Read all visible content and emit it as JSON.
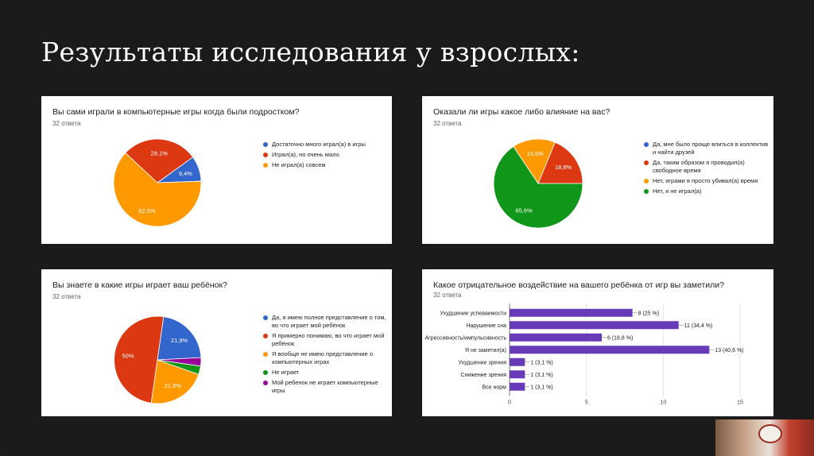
{
  "slide": {
    "title": "Результаты исследования у взрослых:"
  },
  "chart_data": [
    {
      "type": "pie",
      "title": "Вы сами играли в компьютерные игры когда были подростком?",
      "subtitle": "32 ответа",
      "categories": [
        "Достаточно много играл(а) в игры",
        "Играл(а), но очень мало",
        "Не играл(а) совсем"
      ],
      "values": [
        9.4,
        28.1,
        62.5
      ],
      "value_labels": [
        "9,4%",
        "28,1%",
        "62,5%"
      ],
      "colors": [
        "#3366cc",
        "#dc3912",
        "#ff9900"
      ],
      "legend_position": "right"
    },
    {
      "type": "pie",
      "title": "Оказали ли игры какое либо влияние на вас?",
      "subtitle": "32 ответа",
      "categories": [
        "Да, мне было проще влиться в коллектив и найти друзей",
        "Да, таким образом я проводил(а) свободное время",
        "Нет, играми я просто убивал(а) время",
        "Нет, я не играл(а)"
      ],
      "values": [
        0,
        18.8,
        15.6,
        65.6
      ],
      "value_labels": [
        "",
        "18,8%",
        "15,6%",
        "65,6%"
      ],
      "colors": [
        "#3366cc",
        "#dc3912",
        "#ff9900",
        "#109618"
      ],
      "legend_position": "right"
    },
    {
      "type": "pie",
      "title": "Вы знаете в какие игры играет ваш ребёнок?",
      "subtitle": "32 ответа",
      "categories": [
        "Да, я имею полное представление о том, во что играет мой ребёнок",
        "Я примерно понимаю, во что играет мой ребёнок",
        "Я вообще не имею представление о компьютерных играх",
        "Не играет",
        "Мой ребенок не играет компьютерные игры"
      ],
      "values": [
        21.9,
        50,
        21.9,
        3.1,
        3.1
      ],
      "value_labels": [
        "21,9%",
        "50%",
        "21,9%",
        "",
        ""
      ],
      "colors": [
        "#3366cc",
        "#dc3912",
        "#ff9900",
        "#109618",
        "#990099"
      ],
      "legend_position": "right"
    },
    {
      "type": "bar",
      "orientation": "horizontal",
      "title": "Какое отрицательное воздействие на вашего ребёнка от игр вы заметили?",
      "subtitle": "32 ответа",
      "categories": [
        "Ухудшение успеваемости",
        "Нарушение сна",
        "Агрессивность/импульсивность",
        "Я не заметил(а)",
        "Ухудшение зрения",
        "Снижение зрения",
        "Все норм"
      ],
      "values": [
        8,
        11,
        6,
        13,
        1,
        1,
        1
      ],
      "value_labels": [
        "8 (25 %)",
        "11 (34,4 %)",
        "6 (18,8 %)",
        "13 (40,6 %)",
        "1 (3,1 %)",
        "1 (3,1 %)",
        "1 (3,1 %)"
      ],
      "xlim": [
        0,
        15
      ],
      "ticks": [
        "0",
        "5",
        "10",
        "15"
      ],
      "grid": true,
      "color": "#673ab7"
    }
  ]
}
